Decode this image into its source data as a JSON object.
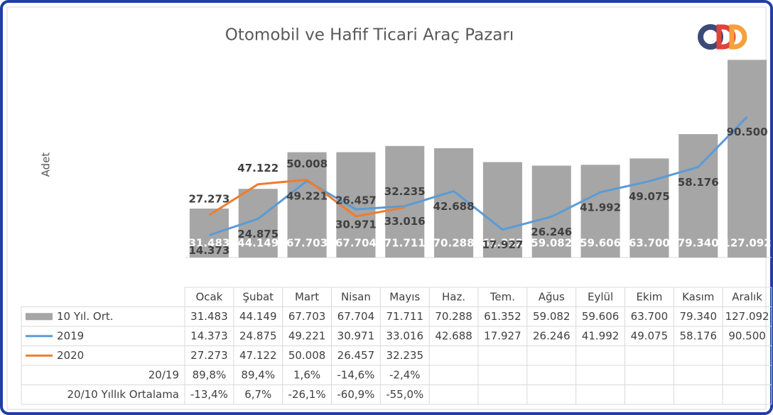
{
  "chart_data": {
    "type": "bar",
    "title": "Otomobil ve Hafif Ticari Araç Pazarı",
    "y_label": "Adet",
    "categories": [
      "Ocak",
      "Şubat",
      "Mart",
      "Nisan",
      "Mayıs",
      "Haz.",
      "Tem.",
      "Ağus",
      "Eylül",
      "Ekim",
      "Kasım",
      "Aralık"
    ],
    "ylim": [
      0,
      130000
    ],
    "series": [
      {
        "name": "10 Yıl. Ort.",
        "type": "bar",
        "color": "#a6a6a6",
        "values": [
          31483,
          44149,
          67703,
          67704,
          71711,
          70288,
          61352,
          59082,
          59606,
          63700,
          79340,
          127092
        ],
        "value_labels": [
          "31.483",
          "44.149",
          "67.703",
          "67.704",
          "71.711",
          "70.288",
          "61.352",
          "59.082",
          "59.606",
          "63.700",
          "79.340",
          "127.092"
        ]
      },
      {
        "name": "2019",
        "type": "line",
        "color": "#5b9bd5",
        "values": [
          14373,
          24875,
          49221,
          30971,
          33016,
          42688,
          17927,
          26246,
          41992,
          49075,
          58176,
          90500
        ],
        "value_labels": [
          "14.373",
          "24.875",
          "49.221",
          "30.971",
          "33.016",
          "42.688",
          "17.927",
          "26.246",
          "41.992",
          "49.075",
          "58.176",
          "90.500"
        ]
      },
      {
        "name": "2020",
        "type": "line",
        "color": "#ed7d31",
        "values": [
          27273,
          47122,
          50008,
          26457,
          32235,
          null,
          null,
          null,
          null,
          null,
          null,
          null
        ],
        "value_labels": [
          "27.273",
          "47.122",
          "50.008",
          "26.457",
          "32.235",
          null,
          null,
          null,
          null,
          null,
          null,
          null
        ]
      }
    ],
    "table_rows": [
      {
        "name": "20/19",
        "values": [
          89.8,
          89.4,
          1.6,
          -14.6,
          -2.4,
          null,
          null,
          null,
          null,
          null,
          null,
          null
        ],
        "value_labels": [
          "89,8%",
          "89,4%",
          "1,6%",
          "-14,6%",
          "-2,4%",
          null,
          null,
          null,
          null,
          null,
          null,
          null
        ]
      },
      {
        "name": "20/10 Yıllık Ortalama",
        "values": [
          -13.4,
          6.7,
          -26.1,
          -60.9,
          -55.0,
          null,
          null,
          null,
          null,
          null,
          null,
          null
        ],
        "value_labels": [
          "-13,4%",
          "6,7%",
          "-26,1%",
          "-60,9%",
          "-55,0%",
          null,
          null,
          null,
          null,
          null,
          null,
          null
        ]
      }
    ]
  }
}
